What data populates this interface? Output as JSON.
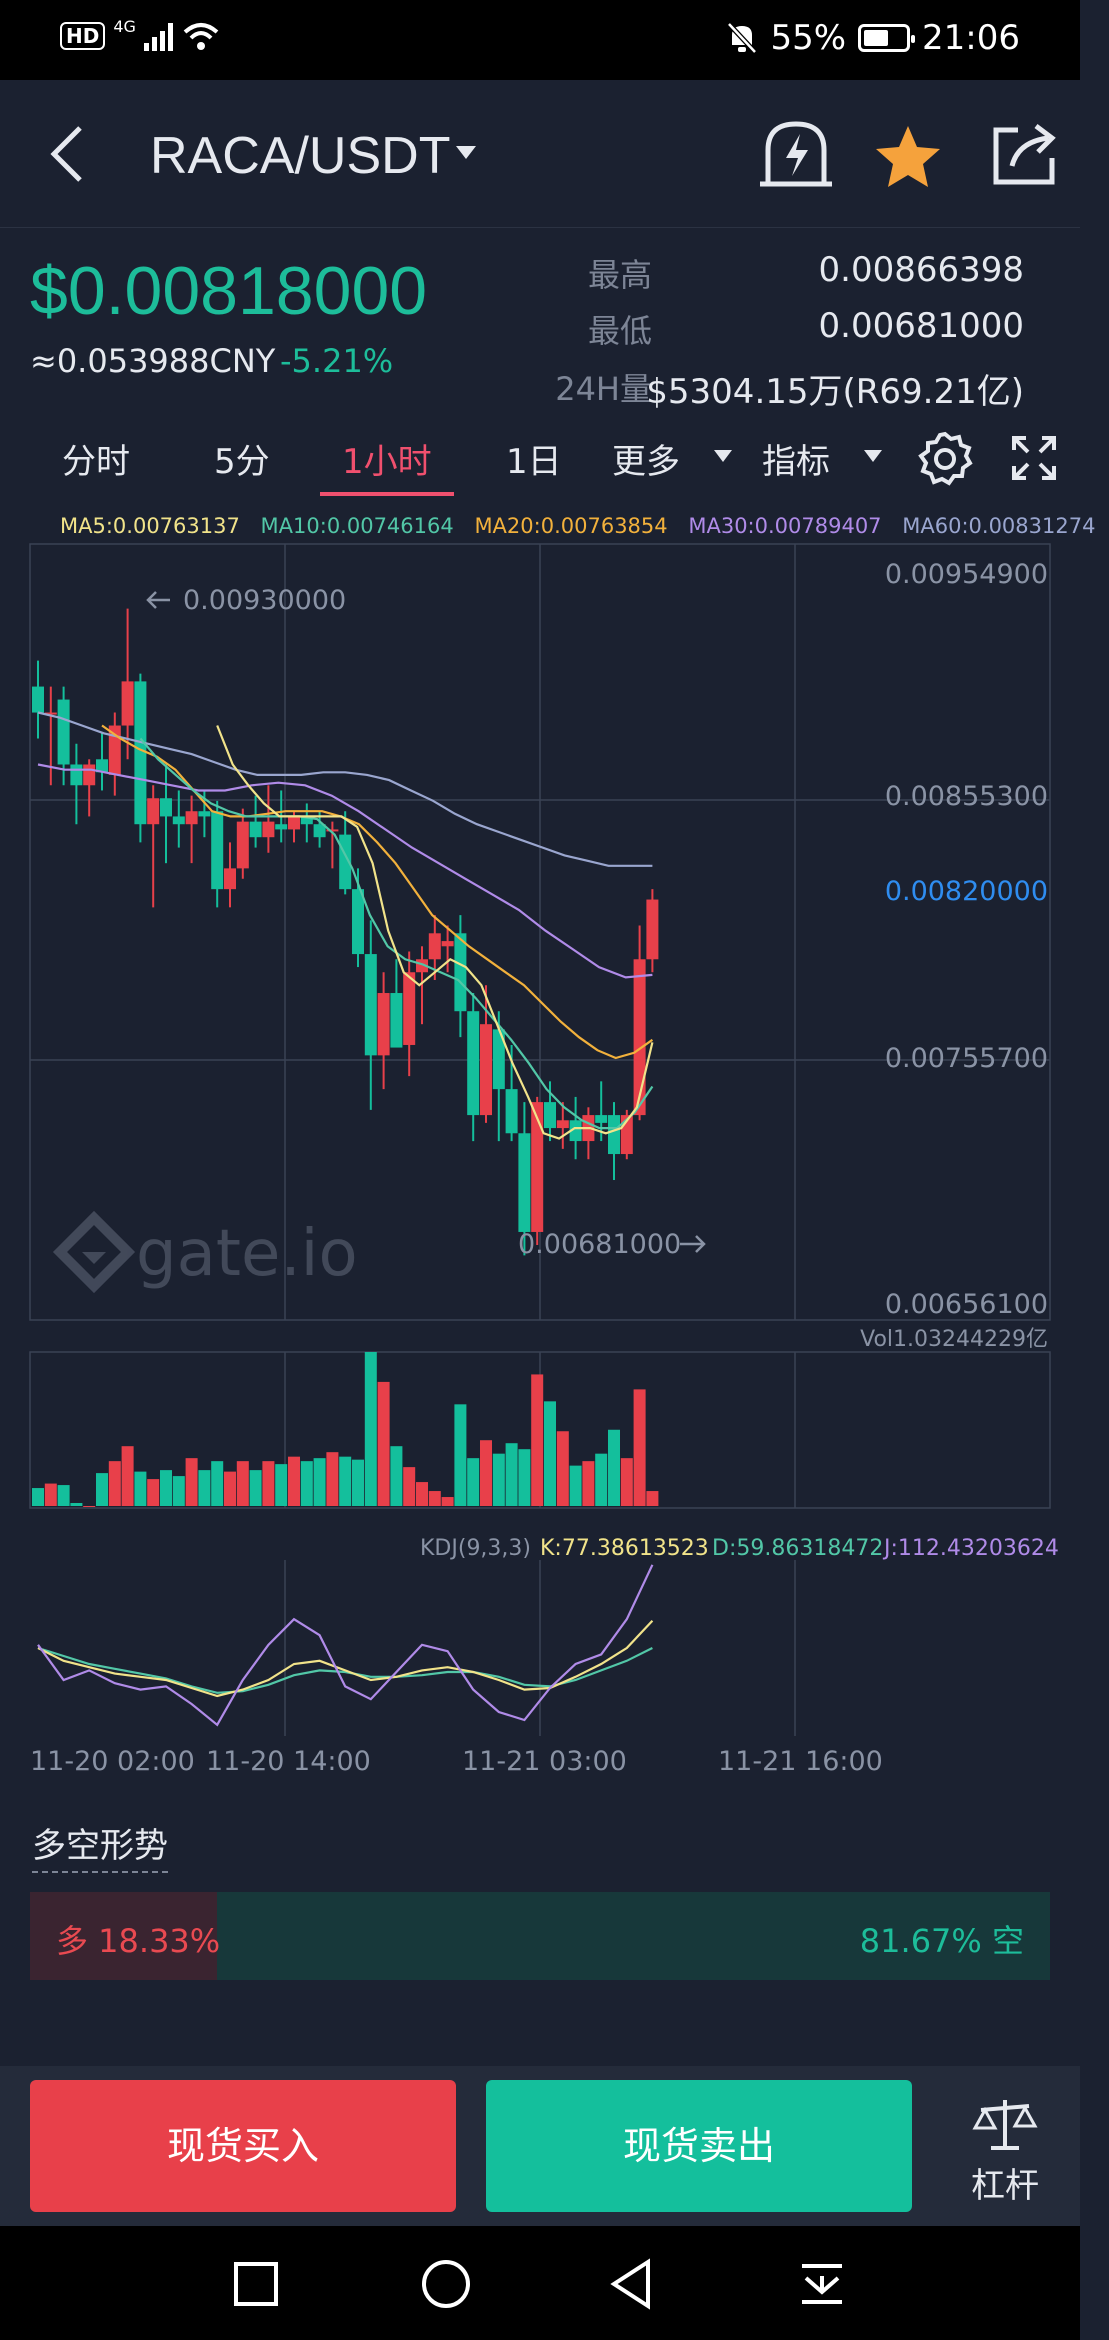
{
  "status_bar": {
    "network": "4G",
    "hd": "HD",
    "battery": "55%",
    "time": "21:06"
  },
  "header": {
    "pair": "RACA/USDT",
    "icons": [
      "back-icon",
      "pair-caret-icon",
      "price-alert-icon",
      "favorite-star-icon",
      "share-icon"
    ]
  },
  "ticker": {
    "last_price": "$0.00818000",
    "cny_price": "≈0.053988CNY",
    "change_pct": "-5.21%",
    "high_label": "最高",
    "high_value": "0.00866398",
    "low_label": "最低",
    "low_value": "0.00681000",
    "volume_label": "24H量",
    "volume_value": "$5304.15万(R69.21亿)"
  },
  "tabs": {
    "t_fenshi": "分时",
    "t_5m": "5分",
    "t_1h": "1小时",
    "t_1d": "1日",
    "t_more": "更多",
    "t_indicator": "指标",
    "active": "1小时"
  },
  "ma_legend": {
    "ma5": "MA5:0.00763137",
    "ma10": "MA10:0.00746164",
    "ma20": "MA20:0.00763854",
    "ma30": "MA30:0.00789407",
    "ma60": "MA60:0.00831274"
  },
  "price_axis": {
    "top": "0.00954900",
    "mid": "0.00855300",
    "current": "0.00820000",
    "lower": "0.00755700",
    "bottom": "0.00656100",
    "high_marker": "0.00930000",
    "low_marker": "0.00681000"
  },
  "volume_label": "Vol1.03244229亿",
  "kdj": {
    "label": "KDJ(9,3,3)",
    "k": "K:77.38613523",
    "d": "D:59.86318472",
    "j": "J:112.43203624"
  },
  "time_axis": {
    "t1": "11-20 02:00",
    "t2": "11-20 14:00",
    "t3": "11-21 03:00",
    "t4": "11-21 16:00"
  },
  "watermark": "gate.io",
  "bias": {
    "title": "多空形势",
    "long": "多 18.33%",
    "short": "81.67% 空",
    "long_fraction": 0.1833
  },
  "actions": {
    "buy": "现货买入",
    "sell": "现货卖出",
    "leverage": "杠杆"
  },
  "colors": {
    "up": "#e8404a",
    "down": "#14bf9c",
    "ma5": "#f1e38a",
    "ma10": "#52c7a7",
    "ma20": "#f2b13c",
    "ma30": "#b08be8",
    "ma60": "#9aa6cf",
    "accent": "#f0506e",
    "current_price": "#2f8df0"
  },
  "chart_data": {
    "type": "candlestick",
    "interval": "1h",
    "candles": [
      {
        "o": 0.009,
        "h": 0.0091,
        "l": 0.0088,
        "c": 0.0089
      },
      {
        "o": 0.0089,
        "h": 0.009,
        "l": 0.00862,
        "c": 0.0089
      },
      {
        "o": 0.00895,
        "h": 0.009,
        "l": 0.00862,
        "c": 0.0087
      },
      {
        "o": 0.0087,
        "h": 0.00878,
        "l": 0.00847,
        "c": 0.00862
      },
      {
        "o": 0.00862,
        "h": 0.00872,
        "l": 0.0085,
        "c": 0.0087
      },
      {
        "o": 0.00872,
        "h": 0.00882,
        "l": 0.0086,
        "c": 0.00867
      },
      {
        "o": 0.00866,
        "h": 0.0089,
        "l": 0.00858,
        "c": 0.00885
      },
      {
        "o": 0.00885,
        "h": 0.0093,
        "l": 0.00872,
        "c": 0.00902
      },
      {
        "o": 0.00902,
        "h": 0.00905,
        "l": 0.0084,
        "c": 0.00847
      },
      {
        "o": 0.00847,
        "h": 0.00862,
        "l": 0.00815,
        "c": 0.00857
      },
      {
        "o": 0.00857,
        "h": 0.0087,
        "l": 0.00832,
        "c": 0.0085
      },
      {
        "o": 0.0085,
        "h": 0.0086,
        "l": 0.00838,
        "c": 0.00847
      },
      {
        "o": 0.00847,
        "h": 0.00858,
        "l": 0.00832,
        "c": 0.00852
      },
      {
        "o": 0.00852,
        "h": 0.0086,
        "l": 0.00842,
        "c": 0.0085
      },
      {
        "o": 0.00852,
        "h": 0.00856,
        "l": 0.00815,
        "c": 0.00822
      },
      {
        "o": 0.00822,
        "h": 0.0084,
        "l": 0.00815,
        "c": 0.0083
      },
      {
        "o": 0.0083,
        "h": 0.00853,
        "l": 0.00826,
        "c": 0.00848
      },
      {
        "o": 0.00848,
        "h": 0.00858,
        "l": 0.00838,
        "c": 0.00842
      },
      {
        "o": 0.00842,
        "h": 0.00862,
        "l": 0.00836,
        "c": 0.00848
      },
      {
        "o": 0.00847,
        "h": 0.0086,
        "l": 0.0084,
        "c": 0.00845
      },
      {
        "o": 0.00845,
        "h": 0.00852,
        "l": 0.0084,
        "c": 0.0085
      },
      {
        "o": 0.0085,
        "h": 0.00855,
        "l": 0.0084,
        "c": 0.00847
      },
      {
        "o": 0.00847,
        "h": 0.00852,
        "l": 0.00838,
        "c": 0.00842
      },
      {
        "o": 0.00845,
        "h": 0.00848,
        "l": 0.0083,
        "c": 0.00845
      },
      {
        "o": 0.00843,
        "h": 0.00852,
        "l": 0.0082,
        "c": 0.00822
      },
      {
        "o": 0.00822,
        "h": 0.0083,
        "l": 0.00792,
        "c": 0.00797
      },
      {
        "o": 0.00797,
        "h": 0.0081,
        "l": 0.00737,
        "c": 0.00758
      },
      {
        "o": 0.00758,
        "h": 0.0079,
        "l": 0.00745,
        "c": 0.00782
      },
      {
        "o": 0.00782,
        "h": 0.00795,
        "l": 0.00762,
        "c": 0.00761
      },
      {
        "o": 0.00762,
        "h": 0.00798,
        "l": 0.0075,
        "c": 0.0079
      },
      {
        "o": 0.0079,
        "h": 0.008,
        "l": 0.0077,
        "c": 0.00795
      },
      {
        "o": 0.00795,
        "h": 0.00812,
        "l": 0.00787,
        "c": 0.00805
      },
      {
        "o": 0.008,
        "h": 0.00808,
        "l": 0.0079,
        "c": 0.00802
      },
      {
        "o": 0.00805,
        "h": 0.00812,
        "l": 0.00765,
        "c": 0.00775
      },
      {
        "o": 0.00775,
        "h": 0.00782,
        "l": 0.00725,
        "c": 0.00735
      },
      {
        "o": 0.00735,
        "h": 0.00785,
        "l": 0.00732,
        "c": 0.0077
      },
      {
        "o": 0.00768,
        "h": 0.00775,
        "l": 0.00725,
        "c": 0.00745
      },
      {
        "o": 0.00745,
        "h": 0.00762,
        "l": 0.00725,
        "c": 0.00728
      },
      {
        "o": 0.00728,
        "h": 0.0074,
        "l": 0.00681,
        "c": 0.0069
      },
      {
        "o": 0.0069,
        "h": 0.00742,
        "l": 0.00685,
        "c": 0.0074
      },
      {
        "o": 0.0074,
        "h": 0.00748,
        "l": 0.00725,
        "c": 0.0073
      },
      {
        "o": 0.0073,
        "h": 0.0074,
        "l": 0.00722,
        "c": 0.00733
      },
      {
        "o": 0.00733,
        "h": 0.00742,
        "l": 0.00718,
        "c": 0.00725
      },
      {
        "o": 0.00725,
        "h": 0.00738,
        "l": 0.00718,
        "c": 0.00735
      },
      {
        "o": 0.00735,
        "h": 0.00748,
        "l": 0.00725,
        "c": 0.00732
      },
      {
        "o": 0.00735,
        "h": 0.0074,
        "l": 0.0071,
        "c": 0.0072
      },
      {
        "o": 0.0072,
        "h": 0.00737,
        "l": 0.00718,
        "c": 0.00735
      },
      {
        "o": 0.00735,
        "h": 0.00808,
        "l": 0.00733,
        "c": 0.00795
      },
      {
        "o": 0.00795,
        "h": 0.00822,
        "l": 0.0079,
        "c": 0.00818
      }
    ],
    "volumes": [
      0.12,
      0.15,
      0.14,
      0.02,
      0.0,
      0.22,
      0.3,
      0.4,
      0.23,
      0.18,
      0.24,
      0.2,
      0.32,
      0.24,
      0.3,
      0.23,
      0.3,
      0.24,
      0.3,
      0.28,
      0.33,
      0.3,
      0.32,
      0.36,
      0.33,
      0.31,
      1.03,
      0.83,
      0.4,
      0.26,
      0.16,
      0.1,
      0.06,
      0.68,
      0.32,
      0.44,
      0.35,
      0.42,
      0.38,
      0.88,
      0.7,
      0.5,
      0.27,
      0.3,
      0.35,
      0.51,
      0.32,
      0.78,
      0.1
    ],
    "ma60": [
      0.0089,
      0.00888,
      0.00885,
      0.00882,
      0.0088,
      0.00878,
      0.00876,
      0.00874,
      0.00871,
      0.00868,
      0.00866,
      0.00866,
      0.00866,
      0.00867,
      0.00867,
      0.00866,
      0.00864,
      0.0086,
      0.00856,
      0.00851,
      0.00847,
      0.00844,
      0.00841,
      0.00838,
      0.00835,
      0.00833,
      0.00831,
      0.00831,
      0.00831
    ],
    "ma30": [
      0.0087,
      0.00868,
      0.00868,
      0.00866,
      0.00864,
      0.00862,
      0.0086,
      0.0086,
      0.00862,
      0.00863,
      0.00862,
      0.00858,
      0.00852,
      0.00845,
      0.00838,
      0.00832,
      0.00826,
      0.0082,
      0.00814,
      0.00806,
      0.00799,
      0.00792,
      0.00788,
      0.00789
    ],
    "ma20": [
      0.00885,
      0.0088,
      0.00876,
      0.00873,
      0.00868,
      0.0086,
      0.00852,
      0.0085,
      0.0085,
      0.00851,
      0.00852,
      0.00852,
      0.00852,
      0.0085,
      0.00847,
      0.0084,
      0.00832,
      0.00822,
      0.00812,
      0.00806,
      0.008,
      0.00795,
      0.0079,
      0.00785,
      0.00778,
      0.00771,
      0.00765,
      0.0076,
      0.00757,
      0.00759,
      0.00764
    ],
    "ma10": [
      0.0088,
      0.00872,
      0.00866,
      0.0086,
      0.00855,
      0.00852,
      0.0085,
      0.0085,
      0.0085,
      0.0085,
      0.00849,
      0.00843,
      0.0083,
      0.00812,
      0.008,
      0.00795,
      0.00793,
      0.0079,
      0.00787,
      0.0078,
      0.00772,
      0.00764,
      0.00755,
      0.00745,
      0.00738,
      0.00733,
      0.0073,
      0.0073,
      0.00736,
      0.00746
    ],
    "ma5": [
      0.00885,
      0.0087,
      0.00862,
      0.00855,
      0.0085,
      0.0085,
      0.0085,
      0.0085,
      0.0085,
      0.00846,
      0.00832,
      0.00806,
      0.0079,
      0.00785,
      0.0079,
      0.00795,
      0.00792,
      0.00785,
      0.0077,
      0.00755,
      0.00742,
      0.00728,
      0.00726,
      0.0073,
      0.0073,
      0.00728,
      0.0073,
      0.00738,
      0.00763
    ],
    "kdj_k": [
      0.6,
      0.52,
      0.48,
      0.44,
      0.42,
      0.4,
      0.35,
      0.3,
      0.34,
      0.4,
      0.5,
      0.52,
      0.46,
      0.4,
      0.42,
      0.46,
      0.48,
      0.45,
      0.4,
      0.34,
      0.35,
      0.42,
      0.5,
      0.6,
      0.77
    ],
    "kdj_d": [
      0.6,
      0.55,
      0.5,
      0.47,
      0.44,
      0.41,
      0.36,
      0.32,
      0.33,
      0.37,
      0.43,
      0.46,
      0.45,
      0.42,
      0.42,
      0.43,
      0.45,
      0.45,
      0.42,
      0.37,
      0.36,
      0.4,
      0.46,
      0.52,
      0.6
    ],
    "kdj_j": [
      0.62,
      0.4,
      0.46,
      0.38,
      0.34,
      0.36,
      0.25,
      0.12,
      0.4,
      0.62,
      0.78,
      0.68,
      0.36,
      0.28,
      0.45,
      0.62,
      0.58,
      0.34,
      0.2,
      0.15,
      0.35,
      0.5,
      0.56,
      0.78,
      1.12
    ],
    "ylim": [
      0.006561,
      0.009549
    ]
  }
}
